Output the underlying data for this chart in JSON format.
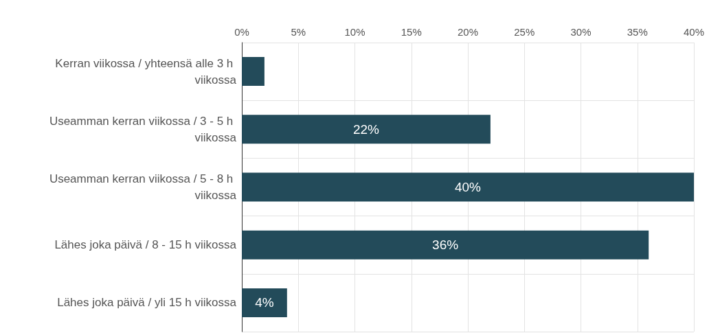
{
  "chart_data": {
    "type": "bar",
    "orientation": "horizontal",
    "categories": [
      "Kerran viikossa / yhteensä alle 3 h viikossa",
      "Useamman kerran viikossa / 3 - 5 h viikossa",
      "Useamman kerran viikossa / 5 - 8 h viikossa",
      "Lähes joka päivä / 8 - 15 h viikossa",
      "Lähes joka päivä / yli 15 h viikossa"
    ],
    "values": [
      2,
      22,
      40,
      36,
      4
    ],
    "value_labels": [
      null,
      "22%",
      "40%",
      "36%",
      "4%"
    ],
    "color": "#234b5a",
    "xlim": [
      0,
      40
    ],
    "xticks": [
      {
        "value": 0,
        "label": "0%"
      },
      {
        "value": 5,
        "label": "5%"
      },
      {
        "value": 10,
        "label": "10%"
      },
      {
        "value": 15,
        "label": "15%"
      },
      {
        "value": 20,
        "label": "20%"
      },
      {
        "value": 25,
        "label": "25%"
      },
      {
        "value": 30,
        "label": "30%"
      },
      {
        "value": 35,
        "label": "35%"
      },
      {
        "value": 40,
        "label": "40%"
      }
    ],
    "grid": true
  }
}
